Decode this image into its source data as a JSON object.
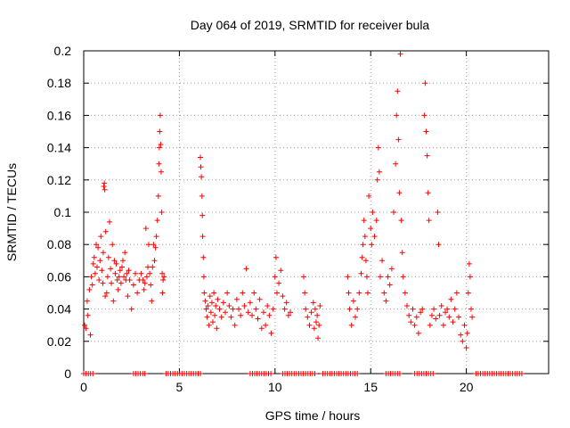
{
  "chart_data": {
    "type": "scatter",
    "title": "Day 064 of 2019, SRMTID for receiver bula",
    "xlabel": "GPS time / hours",
    "ylabel": "SRMTID / TECUs",
    "xlim": [
      0,
      24.3
    ],
    "ylim": [
      0,
      0.2
    ],
    "grid": true,
    "marker": "+",
    "color": "#ff0000",
    "x_ticks": [
      {
        "value": 0,
        "label": "0"
      },
      {
        "value": 5,
        "label": "5"
      },
      {
        "value": 10,
        "label": "10"
      },
      {
        "value": 15,
        "label": "15"
      },
      {
        "value": 20,
        "label": "20"
      }
    ],
    "y_ticks": [
      {
        "value": 0,
        "label": "0"
      },
      {
        "value": 0.02,
        "label": "0.02"
      },
      {
        "value": 0.04,
        "label": "0.04"
      },
      {
        "value": 0.06,
        "label": "0.06"
      },
      {
        "value": 0.08,
        "label": "0.08"
      },
      {
        "value": 0.1,
        "label": "0.1"
      },
      {
        "value": 0.12,
        "label": "0.12"
      },
      {
        "value": 0.14,
        "label": "0.14"
      },
      {
        "value": 0.16,
        "label": "0.16"
      },
      {
        "value": 0.18,
        "label": "0.18"
      },
      {
        "value": 0.2,
        "label": "0.2"
      }
    ],
    "series": [
      {
        "name": "SRMTID",
        "points": [
          [
            0.05,
            0.03
          ],
          [
            0.12,
            0.028
          ],
          [
            0.18,
            0.045
          ],
          [
            0.22,
            0.036
          ],
          [
            0.3,
            0.052
          ],
          [
            0.35,
            0.024
          ],
          [
            0.4,
            0.06
          ],
          [
            0.45,
            0.055
          ],
          [
            0.5,
            0.068
          ],
          [
            0.55,
            0.072
          ],
          [
            0.6,
            0.062
          ],
          [
            0.65,
            0.08
          ],
          [
            0.7,
            0.066
          ],
          [
            0.75,
            0.078
          ],
          [
            0.8,
            0.058
          ],
          [
            0.85,
            0.07
          ],
          [
            0.9,
            0.085
          ],
          [
            0.95,
            0.064
          ],
          [
            1.0,
            0.056
          ],
          [
            1.02,
            0.075
          ],
          [
            1.05,
            0.116
          ],
          [
            1.08,
            0.118
          ],
          [
            1.1,
            0.114
          ],
          [
            1.12,
            0.048
          ],
          [
            1.15,
            0.088
          ],
          [
            1.2,
            0.05
          ],
          [
            1.25,
            0.06
          ],
          [
            1.3,
            0.072
          ],
          [
            1.35,
            0.094
          ],
          [
            1.4,
            0.065
          ],
          [
            1.45,
            0.056
          ],
          [
            1.5,
            0.08
          ],
          [
            1.55,
            0.045
          ],
          [
            1.6,
            0.07
          ],
          [
            1.65,
            0.062
          ],
          [
            1.7,
            0.068
          ],
          [
            1.75,
            0.058
          ],
          [
            1.8,
            0.052
          ],
          [
            1.85,
            0.06
          ],
          [
            1.9,
            0.064
          ],
          [
            1.95,
            0.056
          ],
          [
            2.0,
            0.066
          ],
          [
            2.05,
            0.07
          ],
          [
            2.1,
            0.06
          ],
          [
            2.15,
            0.075
          ],
          [
            2.2,
            0.058
          ],
          [
            2.25,
            0.062
          ],
          [
            2.3,
            0.048
          ],
          [
            2.35,
            0.064
          ],
          [
            2.4,
            0.058
          ],
          [
            2.5,
            0.04
          ],
          [
            2.6,
            0.055
          ],
          [
            2.7,
            0.062
          ],
          [
            2.8,
            0.05
          ],
          [
            2.9,
            0.058
          ],
          [
            3.0,
            0.062
          ],
          [
            3.1,
            0.058
          ],
          [
            3.15,
            0.052
          ],
          [
            3.2,
            0.056
          ],
          [
            3.25,
            0.09
          ],
          [
            3.3,
            0.06
          ],
          [
            3.35,
            0.066
          ],
          [
            3.4,
            0.08
          ],
          [
            3.45,
            0.062
          ],
          [
            3.5,
            0.055
          ],
          [
            3.55,
            0.045
          ],
          [
            3.6,
            0.066
          ],
          [
            3.65,
            0.08
          ],
          [
            3.7,
            0.07
          ],
          [
            3.75,
            0.078
          ],
          [
            3.8,
            0.085
          ],
          [
            3.85,
            0.095
          ],
          [
            3.9,
            0.11
          ],
          [
            3.93,
            0.13
          ],
          [
            3.95,
            0.14
          ],
          [
            3.97,
            0.15
          ],
          [
            4.0,
            0.16
          ],
          [
            4.02,
            0.142
          ],
          [
            4.05,
            0.125
          ],
          [
            4.08,
            0.1
          ],
          [
            4.1,
            0.062
          ],
          [
            4.12,
            0.05
          ],
          [
            4.15,
            0.058
          ],
          [
            4.2,
            0.06
          ],
          [
            6.1,
            0.134
          ],
          [
            6.12,
            0.128
          ],
          [
            6.15,
            0.122
          ],
          [
            6.18,
            0.11
          ],
          [
            6.2,
            0.098
          ],
          [
            6.22,
            0.085
          ],
          [
            6.25,
            0.072
          ],
          [
            6.28,
            0.06
          ],
          [
            6.3,
            0.05
          ],
          [
            6.35,
            0.045
          ],
          [
            6.4,
            0.04
          ],
          [
            6.45,
            0.035
          ],
          [
            6.5,
            0.042
          ],
          [
            6.55,
            0.03
          ],
          [
            6.6,
            0.048
          ],
          [
            6.65,
            0.038
          ],
          [
            6.7,
            0.044
          ],
          [
            6.75,
            0.032
          ],
          [
            6.8,
            0.05
          ],
          [
            6.85,
            0.036
          ],
          [
            6.9,
            0.042
          ],
          [
            6.95,
            0.028
          ],
          [
            7.0,
            0.046
          ],
          [
            7.1,
            0.04
          ],
          [
            7.2,
            0.035
          ],
          [
            7.3,
            0.044
          ],
          [
            7.4,
            0.038
          ],
          [
            7.5,
            0.05
          ],
          [
            7.6,
            0.042
          ],
          [
            7.7,
            0.035
          ],
          [
            7.8,
            0.04
          ],
          [
            7.9,
            0.03
          ],
          [
            8.0,
            0.046
          ],
          [
            8.1,
            0.04
          ],
          [
            8.2,
            0.036
          ],
          [
            8.3,
            0.05
          ],
          [
            8.4,
            0.042
          ],
          [
            8.5,
            0.065
          ],
          [
            8.6,
            0.038
          ],
          [
            8.7,
            0.044
          ],
          [
            8.8,
            0.036
          ],
          [
            8.9,
            0.05
          ],
          [
            9.0,
            0.04
          ],
          [
            9.1,
            0.034
          ],
          [
            9.2,
            0.046
          ],
          [
            9.3,
            0.028
          ],
          [
            9.4,
            0.038
          ],
          [
            9.5,
            0.03
          ],
          [
            9.6,
            0.042
          ],
          [
            9.7,
            0.036
          ],
          [
            9.8,
            0.025
          ],
          [
            9.9,
            0.04
          ],
          [
            10.0,
            0.06
          ],
          [
            10.05,
            0.072
          ],
          [
            10.1,
            0.05
          ],
          [
            10.2,
            0.056
          ],
          [
            10.3,
            0.064
          ],
          [
            10.4,
            0.048
          ],
          [
            10.5,
            0.04
          ],
          [
            10.6,
            0.044
          ],
          [
            10.7,
            0.036
          ],
          [
            10.8,
            0.038
          ],
          [
            11.5,
            0.06
          ],
          [
            11.55,
            0.05
          ],
          [
            11.6,
            0.04
          ],
          [
            11.7,
            0.035
          ],
          [
            11.8,
            0.03
          ],
          [
            11.9,
            0.038
          ],
          [
            12.0,
            0.044
          ],
          [
            12.05,
            0.028
          ],
          [
            12.1,
            0.04
          ],
          [
            12.15,
            0.032
          ],
          [
            12.2,
            0.036
          ],
          [
            12.25,
            0.022
          ],
          [
            12.3,
            0.03
          ],
          [
            12.35,
            0.042
          ],
          [
            13.8,
            0.06
          ],
          [
            13.85,
            0.05
          ],
          [
            13.9,
            0.04
          ],
          [
            14.0,
            0.03
          ],
          [
            14.1,
            0.045
          ],
          [
            14.2,
            0.035
          ],
          [
            14.3,
            0.04
          ],
          [
            14.4,
            0.05
          ],
          [
            14.5,
            0.062
          ],
          [
            14.55,
            0.072
          ],
          [
            14.6,
            0.08
          ],
          [
            14.65,
            0.095
          ],
          [
            14.7,
            0.085
          ],
          [
            14.75,
            0.07
          ],
          [
            14.8,
            0.06
          ],
          [
            14.85,
            0.05
          ],
          [
            14.9,
            0.11
          ],
          [
            15.0,
            0.09
          ],
          [
            15.05,
            0.08
          ],
          [
            15.1,
            0.1
          ],
          [
            15.2,
            0.085
          ],
          [
            15.3,
            0.095
          ],
          [
            15.35,
            0.12
          ],
          [
            15.4,
            0.14
          ],
          [
            15.45,
            0.125
          ],
          [
            15.5,
            0.06
          ],
          [
            15.6,
            0.07
          ],
          [
            15.7,
            0.05
          ],
          [
            15.8,
            0.045
          ],
          [
            15.9,
            0.06
          ],
          [
            16.0,
            0.055
          ],
          [
            16.1,
            0.065
          ],
          [
            16.2,
            0.1
          ],
          [
            16.3,
            0.13
          ],
          [
            16.35,
            0.16
          ],
          [
            16.4,
            0.175
          ],
          [
            16.45,
            0.145
          ],
          [
            16.5,
            0.112
          ],
          [
            16.55,
            0.198
          ],
          [
            16.6,
            0.095
          ],
          [
            16.65,
            0.075
          ],
          [
            16.7,
            0.06
          ],
          [
            16.8,
            0.05
          ],
          [
            16.9,
            0.042
          ],
          [
            17.0,
            0.036
          ],
          [
            17.1,
            0.032
          ],
          [
            17.2,
            0.04
          ],
          [
            17.3,
            0.03
          ],
          [
            17.4,
            0.035
          ],
          [
            17.5,
            0.025
          ],
          [
            17.6,
            0.038
          ],
          [
            17.7,
            0.04
          ],
          [
            17.8,
            0.16
          ],
          [
            17.85,
            0.18
          ],
          [
            17.9,
            0.15
          ],
          [
            17.95,
            0.135
          ],
          [
            18.0,
            0.112
          ],
          [
            18.05,
            0.095
          ],
          [
            18.1,
            0.03
          ],
          [
            18.2,
            0.036
          ],
          [
            18.3,
            0.04
          ],
          [
            18.4,
            0.034
          ],
          [
            18.5,
            0.1
          ],
          [
            18.55,
            0.08
          ],
          [
            18.6,
            0.036
          ],
          [
            18.7,
            0.042
          ],
          [
            18.8,
            0.03
          ],
          [
            18.9,
            0.038
          ],
          [
            19.0,
            0.04
          ],
          [
            19.1,
            0.035
          ],
          [
            19.2,
            0.046
          ],
          [
            19.3,
            0.032
          ],
          [
            19.4,
            0.04
          ],
          [
            19.5,
            0.05
          ],
          [
            19.6,
            0.035
          ],
          [
            19.7,
            0.024
          ],
          [
            19.8,
            0.02
          ],
          [
            19.9,
            0.03
          ],
          [
            20.0,
            0.016
          ],
          [
            20.05,
            0.025
          ],
          [
            20.1,
            0.05
          ],
          [
            20.15,
            0.068
          ],
          [
            20.2,
            0.06
          ],
          [
            20.25,
            0.04
          ],
          [
            20.3,
            0.035
          ]
        ],
        "zero_segments": [
          [
            0.0,
            0.5
          ],
          [
            2.6,
            3.3
          ],
          [
            4.3,
            6.1
          ],
          [
            8.7,
            9.8
          ],
          [
            10.4,
            12.1
          ],
          [
            12.5,
            14.4
          ],
          [
            15.8,
            16.6
          ],
          [
            17.3,
            18.3
          ],
          [
            20.5,
            23.0
          ]
        ]
      }
    ]
  }
}
